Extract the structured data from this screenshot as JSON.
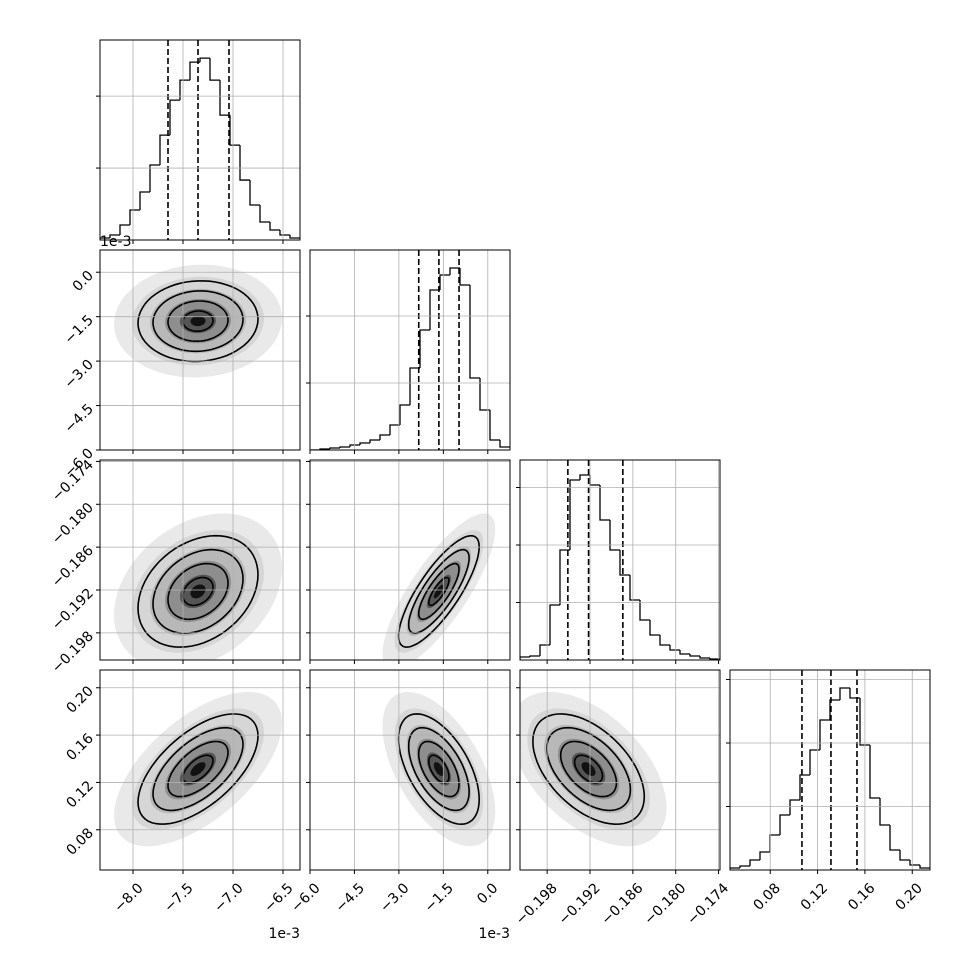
{
  "chart_data": {
    "type": "corner",
    "parameters": [
      {
        "offset_label": "1e-3",
        "lim": [
          -8.33,
          -6.33
        ],
        "ticks": [
          {
            "value": -8,
            "label": "−8.0"
          },
          {
            "value": -7.5,
            "label": "−7.5"
          },
          {
            "value": -7,
            "label": "−7.0"
          },
          {
            "value": -6.5,
            "label": "−6.5"
          }
        ],
        "quantiles": [
          -7.65,
          -7.35,
          -7.04
        ],
        "mean": -7.35,
        "sd": 0.3,
        "bins": [
          -8.33,
          -8.23,
          -8.13,
          -8.03,
          -7.93,
          -7.83,
          -7.73,
          -7.63,
          -7.53,
          -7.43,
          -7.33,
          -7.23,
          -7.13,
          -7.03,
          -6.93,
          -6.83,
          -6.73,
          -6.63,
          -6.53,
          -6.43,
          -6.33
        ],
        "counts": [
          28,
          69,
          208,
          417,
          667,
          1042,
          1458,
          1944,
          2222,
          2472,
          2528,
          2222,
          1736,
          1319,
          833,
          486,
          250,
          139,
          69,
          28
        ],
        "count_lim": [
          0,
          2780
        ],
        "count_ticks": [
          1000,
          2000
        ]
      },
      {
        "offset_label": "1e-3",
        "lim": [
          -6.0,
          0.75
        ],
        "ticks": [
          {
            "value": -6,
            "label": "−6.0"
          },
          {
            "value": -4.5,
            "label": "−4.5"
          },
          {
            "value": -3,
            "label": "−3.0"
          },
          {
            "value": -1.5,
            "label": "−1.5"
          },
          {
            "value": 0,
            "label": "0.0"
          }
        ],
        "quantiles": [
          -2.33,
          -1.65,
          -0.97
        ],
        "mean": -1.65,
        "sd": 0.68,
        "bins": [
          -6.0,
          -5.6625,
          -5.325,
          -4.9875,
          -4.65,
          -4.3125,
          -3.975,
          -3.6375,
          -3.3,
          -2.9625,
          -2.625,
          -2.2875,
          -1.95,
          -1.6125,
          -1.275,
          -0.9375,
          -0.6,
          -0.2625,
          0.075,
          0.4125,
          0.75
        ],
        "counts": [
          0,
          15,
          30,
          45,
          75,
          104,
          149,
          224,
          373,
          672,
          1224,
          1791,
          2388,
          2612,
          2716,
          2463,
          1075,
          597,
          149,
          45
        ],
        "count_lim": [
          0,
          2985
        ],
        "count_ticks": [
          1000,
          2000
        ]
      },
      {
        "lim": [
          -0.2018,
          -0.1738
        ],
        "ticks": [
          {
            "value": -0.198,
            "label": "−0.198"
          },
          {
            "value": -0.192,
            "label": "−0.192"
          },
          {
            "value": -0.186,
            "label": "−0.186"
          },
          {
            "value": -0.18,
            "label": "−0.180"
          },
          {
            "value": -0.174,
            "label": "−0.174"
          }
        ],
        "quantiles": [
          -0.1951,
          -0.1922,
          -0.1874
        ],
        "mean": -0.1922,
        "sd": 0.0039,
        "bins": [
          -0.2018,
          -0.2004,
          -0.199,
          -0.1976,
          -0.1962,
          -0.1948,
          -0.1934,
          -0.192,
          -0.1906,
          -0.1892,
          -0.1878,
          -0.1864,
          -0.185,
          -0.1836,
          -0.1822,
          -0.1808,
          -0.1794,
          -0.178,
          -0.1766,
          -0.1752,
          -0.1738
        ],
        "counts": [
          52,
          70,
          261,
          957,
          1913,
          3130,
          3217,
          3043,
          2435,
          1913,
          1478,
          1043,
          696,
          435,
          261,
          174,
          104,
          70,
          35,
          17
        ],
        "count_lim": [
          0,
          3478
        ],
        "count_ticks": [
          1000,
          2000,
          3000
        ]
      },
      {
        "lim": [
          0.046,
          0.215
        ],
        "ticks": [
          0.08,
          0.12,
          0.16,
          {
            "value": 0.2,
            "label": "0.20"
          }
        ],
        "quantiles": [
          0.1068,
          0.1313,
          0.1533
        ],
        "mean": 0.1313,
        "sd": 0.0233,
        "bins": [
          0.046,
          0.05445,
          0.0629,
          0.07135,
          0.0798,
          0.08825,
          0.0967,
          0.10515,
          0.1136,
          0.12205,
          0.1305,
          0.13895,
          0.1474,
          0.15585,
          0.1643,
          0.17275,
          0.1812,
          0.18965,
          0.1981,
          0.20655,
          0.215
        ],
        "counts": [
          31,
          63,
          157,
          283,
          551,
          866,
          1102,
          1496,
          1890,
          2362,
          2677,
          2866,
          2709,
          1969,
          1134,
          709,
          315,
          157,
          79,
          31
        ],
        "count_lim": [
          0,
          3150
        ],
        "count_ticks": [
          1000,
          2000,
          3000
        ]
      }
    ],
    "correlations": [
      0.05,
      0.3,
      0.8,
      0.6,
      -0.55,
      -0.5
    ],
    "grid": true
  }
}
